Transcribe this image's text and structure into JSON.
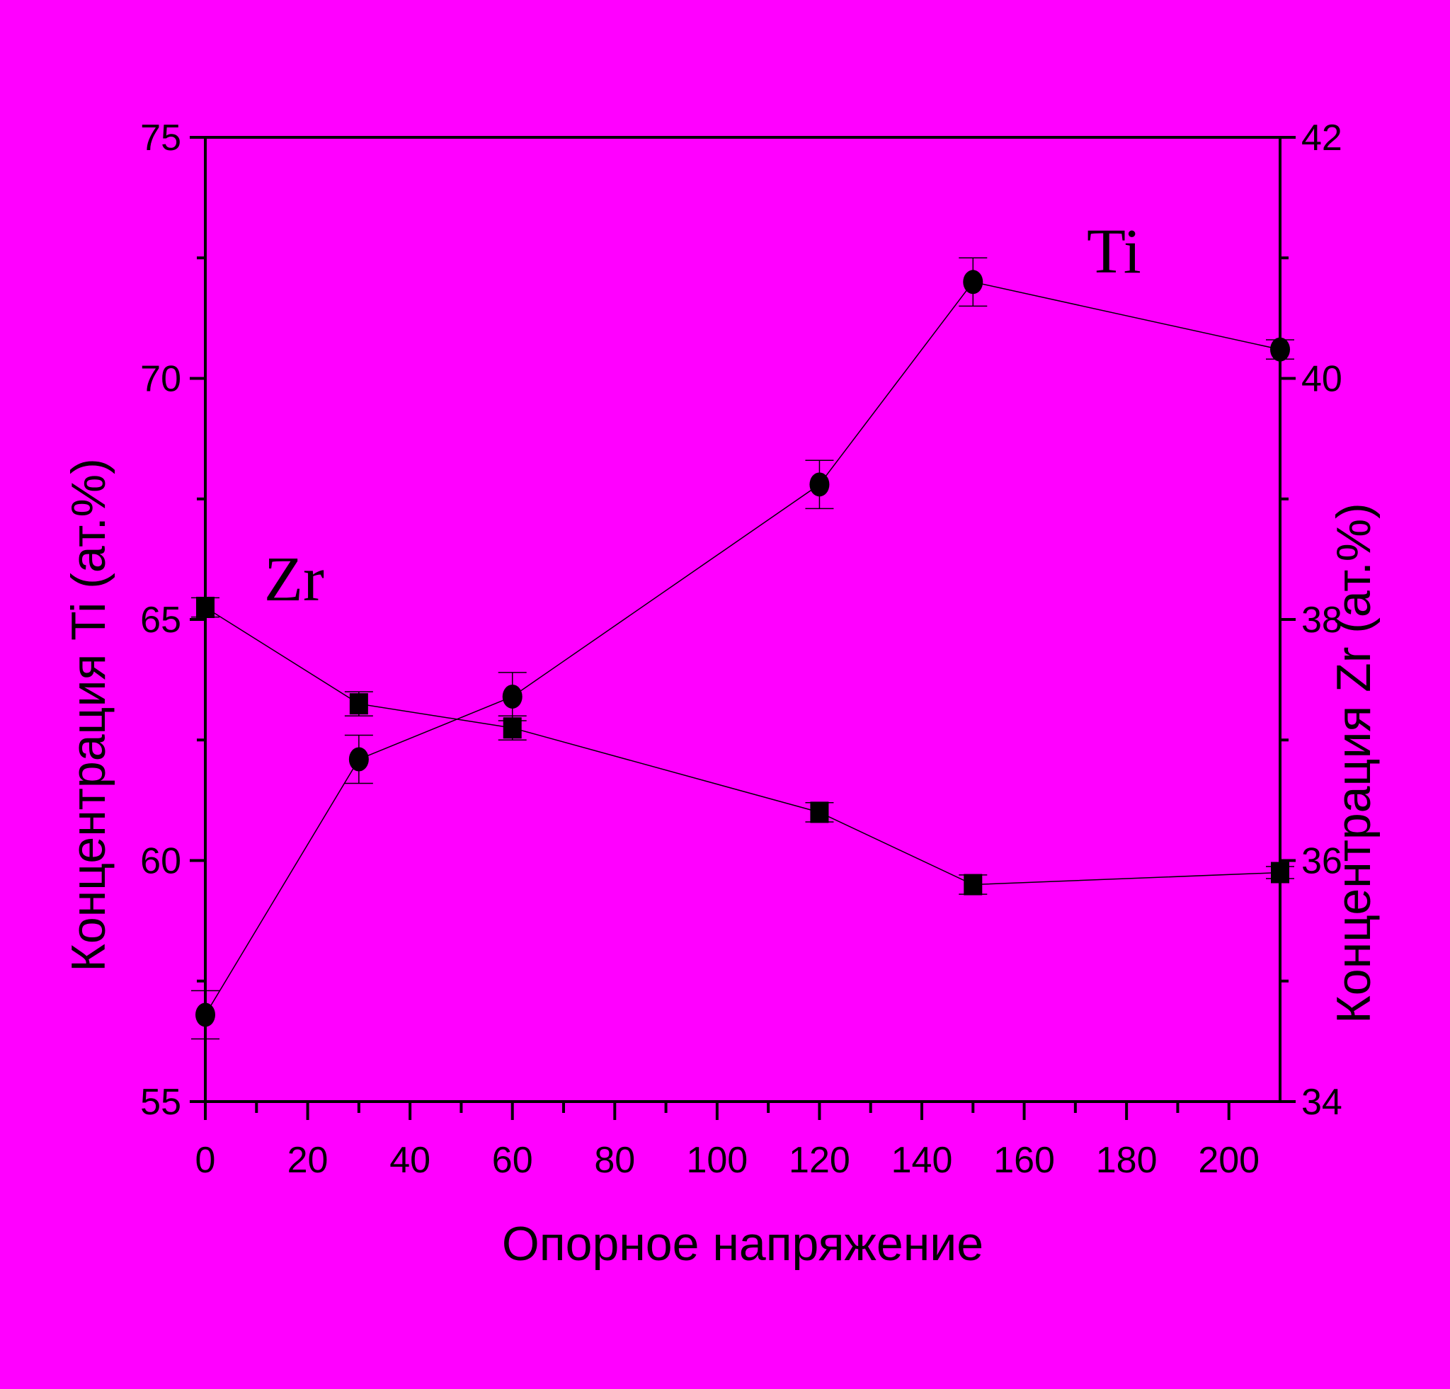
{
  "colors": {
    "background": "#ff00ff",
    "ink": "#000000"
  },
  "chart_data": {
    "type": "scatter",
    "title": "",
    "xlabel": "Опорное напряжение",
    "ylabel_left": "Концентрация Ti (ат.%)",
    "ylabel_right": "Концентрация Zr (ат.%)",
    "xlim": [
      0,
      210
    ],
    "xticks": [
      0,
      20,
      40,
      60,
      80,
      100,
      120,
      140,
      160,
      180,
      200
    ],
    "ylim_left": [
      55,
      75
    ],
    "yticks_left": [
      55,
      60,
      65,
      70,
      75
    ],
    "ylim_right": [
      34,
      42
    ],
    "yticks_right": [
      34,
      36,
      38,
      40,
      42
    ],
    "grid": false,
    "legend": "none",
    "series": [
      {
        "name": "Ti",
        "axis": "left",
        "marker": "circle",
        "x": [
          0,
          30,
          60,
          120,
          150,
          210
        ],
        "y": [
          56.8,
          62.1,
          63.4,
          67.8,
          72.0,
          70.6
        ],
        "err": [
          0.5,
          0.5,
          0.5,
          0.5,
          0.5,
          0.2
        ]
      },
      {
        "name": "Zr",
        "axis": "right",
        "marker": "square",
        "x": [
          0,
          30,
          60,
          120,
          150,
          210
        ],
        "y": [
          38.1,
          37.3,
          37.1,
          36.4,
          35.8,
          35.9
        ],
        "err": [
          0.08,
          0.1,
          0.1,
          0.08,
          0.08,
          0.05
        ]
      }
    ],
    "annotations": [
      "Ti",
      "Zr"
    ]
  }
}
